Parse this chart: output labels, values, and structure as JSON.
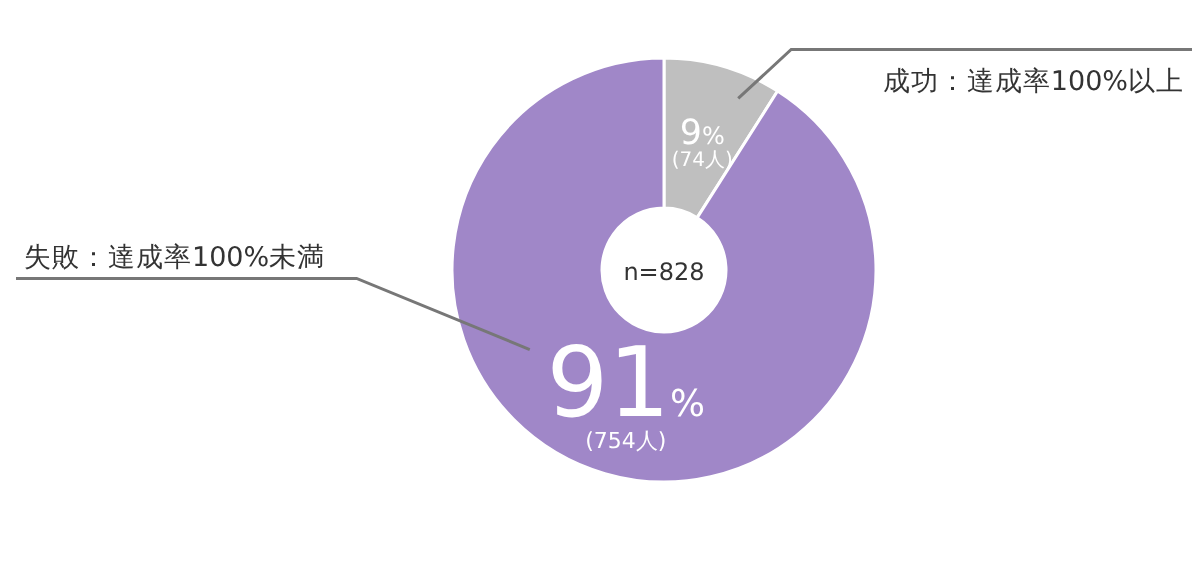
{
  "chart_data": {
    "type": "donut",
    "categories": [
      "成功：達成率100%以上",
      "失敗：達成率100%未満"
    ],
    "values": [
      9,
      91
    ],
    "colors": [
      "#bfbfbf",
      "#a087c8"
    ],
    "value_labels": [
      "9%",
      "91%"
    ],
    "annotations": [
      {
        "text": "(74人)",
        "x": "成功：達成率100%以上"
      },
      {
        "text": "(754人)",
        "x": "失敗：達成率100%未満"
      },
      "n=828"
    ]
  }
}
